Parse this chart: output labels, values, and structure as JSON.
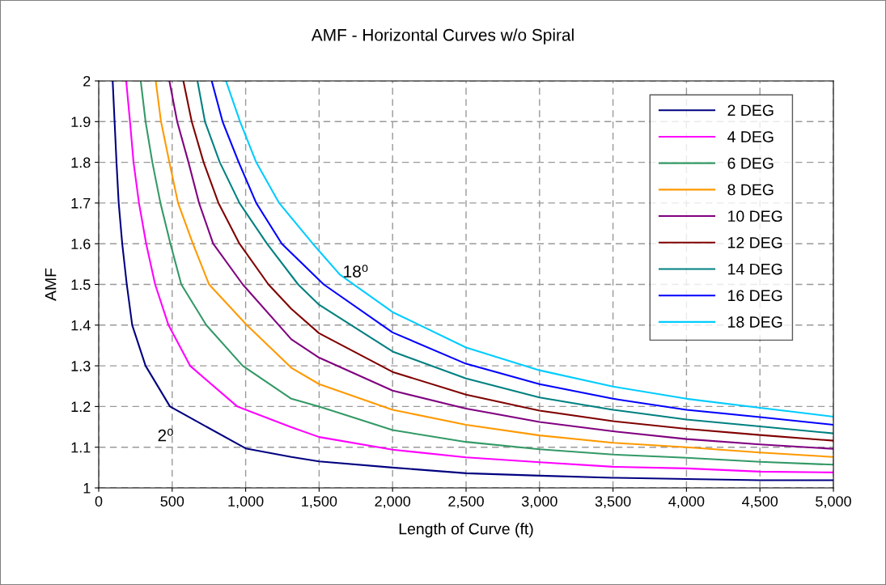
{
  "chart_data": {
    "type": "line",
    "title": "AMF - Horizontal Curves w/o Spiral",
    "xlabel": "Length of Curve (ft)",
    "ylabel": "AMF",
    "xlim": [
      0,
      5000
    ],
    "ylim": [
      1,
      2
    ],
    "xticks": [
      0,
      {
        "value": 500,
        "label": "500"
      },
      {
        "value": 1000,
        "label": "1,000"
      },
      {
        "value": 1500,
        "label": "1,500"
      },
      {
        "value": 2000,
        "label": "2,000"
      },
      {
        "value": 2500,
        "label": "2,500"
      },
      {
        "value": 3000,
        "label": "3,000"
      },
      {
        "value": 3500,
        "label": "3,500"
      },
      {
        "value": 4000,
        "label": "4,000"
      },
      {
        "value": 4500,
        "label": "4,500"
      },
      {
        "value": 5000,
        "label": "5,000"
      }
    ],
    "yticks": [
      1,
      1.1,
      1.2,
      1.3,
      1.4,
      1.5,
      1.6,
      1.7,
      1.8,
      1.9,
      2
    ],
    "grid": true,
    "legend": "top right",
    "line_style": "solid",
    "marker": "none",
    "series": [
      {
        "name": "2 DEG",
        "color": "#000080",
        "x": [
          95,
          108,
          121,
          136,
          160,
          191,
          228,
          319,
          485,
          1000,
          1311,
          1500,
          2000,
          2500,
          3000,
          3500,
          4000,
          4500,
          5000
        ],
        "values": [
          2,
          1.9,
          1.8,
          1.7,
          1.6,
          1.5,
          1.4,
          1.3,
          1.2,
          1.097,
          1.076,
          1.065,
          1.05,
          1.036,
          1.03,
          1.025,
          1.022,
          1.019,
          1.019
        ]
      },
      {
        "name": "4 DEG",
        "color": "#ff00ff",
        "x": [
          187,
          213,
          237,
          274,
          323,
          384,
          475,
          622,
          943,
          1311,
          1500,
          2000,
          2500,
          3000,
          3500,
          4000,
          4500,
          5000
        ],
        "values": [
          2,
          1.9,
          1.8,
          1.7,
          1.6,
          1.5,
          1.4,
          1.3,
          1.2,
          1.149,
          1.125,
          1.094,
          1.075,
          1.063,
          1.052,
          1.048,
          1.04,
          1.038
        ]
      },
      {
        "name": "6 DEG",
        "color": "#339966",
        "x": [
          286,
          319,
          365,
          420,
          488,
          562,
          732,
          980,
          1311,
          1500,
          2000,
          2500,
          3000,
          3500,
          4000,
          4500,
          5000
        ],
        "values": [
          2,
          1.9,
          1.8,
          1.7,
          1.6,
          1.5,
          1.4,
          1.3,
          1.219,
          1.2,
          1.142,
          1.113,
          1.095,
          1.082,
          1.074,
          1.064,
          1.057
        ]
      },
      {
        "name": "8 DEG",
        "color": "#ff9900",
        "x": [
          388,
          424,
          481,
          540,
          641,
          751,
          1008,
          1311,
          1500,
          2000,
          2500,
          3000,
          3500,
          4000,
          4500,
          5000
        ],
        "values": [
          2,
          1.9,
          1.8,
          1.7,
          1.6,
          1.5,
          1.4,
          1.295,
          1.255,
          1.192,
          1.155,
          1.129,
          1.111,
          1.1,
          1.087,
          1.076
        ]
      },
      {
        "name": "10 DEG",
        "color": "#800080",
        "x": [
          481,
          534,
          611,
          683,
          779,
          980,
          1311,
          1500,
          2000,
          2500,
          3000,
          3500,
          4000,
          4500,
          5000
        ],
        "values": [
          2,
          1.9,
          1.8,
          1.7,
          1.6,
          1.5,
          1.365,
          1.32,
          1.239,
          1.195,
          1.162,
          1.139,
          1.12,
          1.107,
          1.096
        ]
      },
      {
        "name": "12 DEG",
        "color": "#800000",
        "x": [
          576,
          633,
          714,
          815,
          958,
          1155,
          1311,
          1500,
          2000,
          2500,
          3000,
          3500,
          4000,
          4500,
          5000
        ],
        "values": [
          2,
          1.9,
          1.8,
          1.7,
          1.6,
          1.5,
          1.44,
          1.38,
          1.285,
          1.229,
          1.19,
          1.164,
          1.145,
          1.13,
          1.116
        ]
      },
      {
        "name": "14 DEG",
        "color": "#008080",
        "x": [
          672,
          723,
          824,
          958,
          1145,
          1357,
          1500,
          2000,
          2500,
          3000,
          3500,
          4000,
          4500,
          5000
        ],
        "values": [
          2,
          1.9,
          1.8,
          1.7,
          1.6,
          1.5,
          1.45,
          1.335,
          1.269,
          1.222,
          1.192,
          1.168,
          1.151,
          1.134
        ]
      },
      {
        "name": "16 DEG",
        "color": "#0000ff",
        "x": [
          769,
          843,
          953,
          1072,
          1246,
          1531,
          2000,
          2500,
          3000,
          3500,
          4000,
          4500,
          5000
        ],
        "values": [
          2,
          1.9,
          1.8,
          1.7,
          1.6,
          1.5,
          1.382,
          1.305,
          1.255,
          1.219,
          1.192,
          1.174,
          1.155
        ]
      },
      {
        "name": "18 DEG",
        "color": "#00ccff",
        "x": [
          866,
          962,
          1072,
          1228,
          1457,
          1641,
          2000,
          2500,
          3000,
          3500,
          4000,
          4500,
          5000
        ],
        "values": [
          2,
          1.9,
          1.8,
          1.7,
          1.6,
          1.524,
          1.432,
          1.345,
          1.289,
          1.249,
          1.219,
          1.197,
          1.175
        ]
      }
    ],
    "annotations": [
      {
        "text": "2⁰",
        "x": 485,
        "y": 1.2
      },
      {
        "text": "18⁰",
        "x": 1457,
        "y": 1.6
      }
    ]
  }
}
